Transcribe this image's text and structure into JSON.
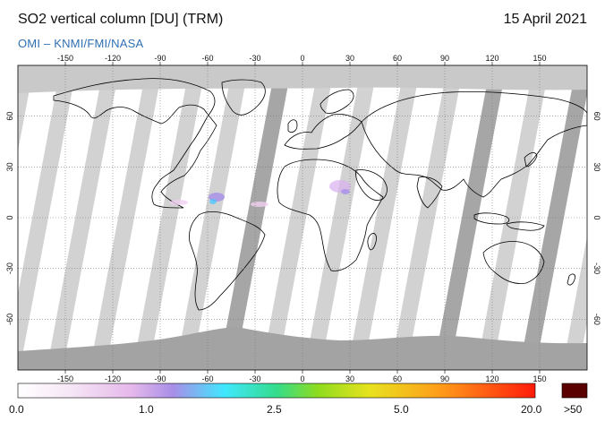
{
  "header": {
    "title": "SO2 vertical column [DU] (TRM)",
    "date": "15 April 2021",
    "credit": "OMI  –  KNMI/FMI/NASA"
  },
  "map": {
    "projection": "equirectangular",
    "lon_range": [
      -180,
      180
    ],
    "lat_range": [
      -90,
      90
    ],
    "lon_ticks": [
      "-150",
      "-120",
      "-90",
      "-60",
      "-30",
      "0",
      "30",
      "60",
      "90",
      "120",
      "150"
    ],
    "lat_ticks": [
      "60",
      "30",
      "0",
      "-30",
      "-60"
    ],
    "colors": {
      "no_data": "#d2d2d2",
      "orbit_gap": "#a6a6a6",
      "land_mask": "#a0a0a0",
      "coastline": "#000000",
      "grid": "#7a7a7a"
    }
  },
  "colorbar": {
    "labels": [
      "0.0",
      "1.0",
      "2.5",
      "5.0",
      "20.0",
      ">50"
    ],
    "colors": [
      "#ffffff",
      "#f3d8f3",
      "#d9a6e6",
      "#9a8ae8",
      "#3fe8ff",
      "#37dd80",
      "#8adc1a",
      "#e8e21a",
      "#ff9a1a",
      "#ff2a0a",
      "#5a0000"
    ]
  }
}
